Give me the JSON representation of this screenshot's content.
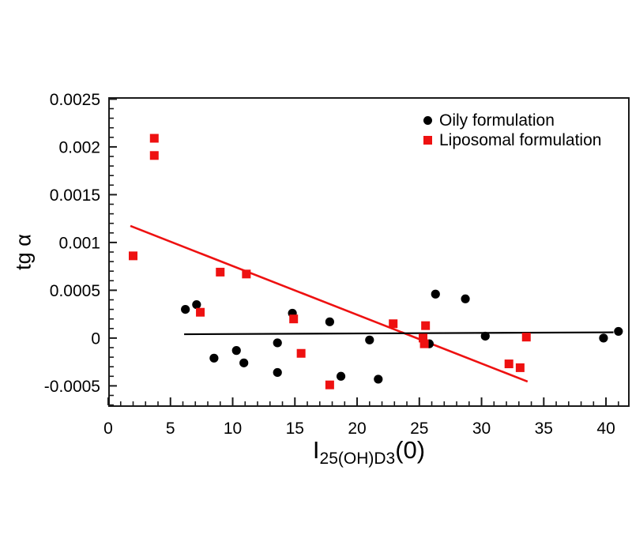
{
  "chart_data": {
    "type": "scatter",
    "title": "",
    "ylabel": "tg α",
    "xlabel": {
      "pre": "I",
      "sub": "25(OH)D3",
      "post": "(0)"
    },
    "xlim": [
      0,
      41.9
    ],
    "ylim": [
      -0.00072,
      0.00252
    ],
    "grid": false,
    "x_ticks": {
      "major": [
        0,
        5,
        10,
        15,
        20,
        25,
        30,
        35,
        40
      ],
      "labels": [
        "0",
        "5",
        "10",
        "15",
        "20",
        "25",
        "30",
        "35",
        "40"
      ],
      "minor_step": 1
    },
    "y_ticks": {
      "major": [
        -0.0005,
        0,
        0.0005,
        0.001,
        0.0015,
        0.002,
        0.0025
      ],
      "labels": [
        "-0.0005",
        "0",
        "0.0005",
        "0.001",
        "0.0015",
        "0.002",
        "0.0025"
      ],
      "minor_step": 0.0001
    },
    "legend_position": "top-right-inside",
    "series": [
      {
        "name": "Oily formulation",
        "marker": "circle",
        "color": "#000000",
        "points": [
          [
            6.2,
            0.0003
          ],
          [
            7.1,
            0.00035
          ],
          [
            8.5,
            -0.00021
          ],
          [
            10.3,
            -0.00013
          ],
          [
            10.9,
            -0.00026
          ],
          [
            13.6,
            -5e-05
          ],
          [
            13.6,
            -0.00036
          ],
          [
            14.8,
            0.00026
          ],
          [
            17.8,
            0.00017
          ],
          [
            18.7,
            -0.0004
          ],
          [
            21.0,
            -2e-05
          ],
          [
            21.7,
            -0.00043
          ],
          [
            25.8,
            -6e-05
          ],
          [
            26.3,
            0.00046
          ],
          [
            28.7,
            0.00041
          ],
          [
            30.3,
            2e-05
          ],
          [
            39.8,
            0.0
          ],
          [
            41.0,
            7e-05
          ]
        ]
      },
      {
        "name": "Liposomal formulation",
        "marker": "square",
        "color": "#ee1111",
        "points": [
          [
            2.0,
            0.00086
          ],
          [
            3.7,
            0.00209
          ],
          [
            3.7,
            0.00191
          ],
          [
            7.4,
            0.00027
          ],
          [
            9.0,
            0.00069
          ],
          [
            11.1,
            0.00067
          ],
          [
            14.9,
            0.0002
          ],
          [
            15.5,
            -0.00016
          ],
          [
            17.8,
            -0.00049
          ],
          [
            22.9,
            0.00015
          ],
          [
            25.5,
            0.00013
          ],
          [
            25.3,
            0.0
          ],
          [
            25.4,
            -6e-05
          ],
          [
            32.2,
            -0.00027
          ],
          [
            33.1,
            -0.00031
          ],
          [
            33.6,
            1e-05
          ]
        ]
      }
    ],
    "trend_lines": [
      {
        "series": "Liposomal formulation",
        "color": "#ee1111",
        "width": 2.6,
        "from": [
          1.78,
          0.001173
        ],
        "to": [
          33.7,
          -0.000455
        ]
      },
      {
        "series": "Oily formulation",
        "color": "#000000",
        "width": 2.2,
        "from": [
          6.1,
          4e-05
        ],
        "to": [
          40.6,
          6e-05
        ]
      }
    ],
    "frame_color": "#1a1a1a"
  }
}
